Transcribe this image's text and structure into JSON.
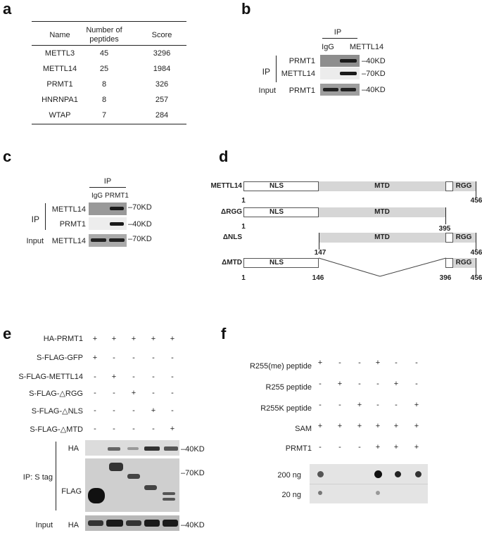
{
  "panels": {
    "a": "a",
    "b": "b",
    "c": "c",
    "d": "d",
    "e": "e",
    "f": "f"
  },
  "table": {
    "headers": [
      "Name",
      "Number of peptides",
      "Score"
    ],
    "header_lines": {
      "col2_l1": "Number of",
      "col2_l2": "peptides"
    },
    "rows": [
      {
        "name": "METTL3",
        "peptides": "45",
        "score": "3296"
      },
      {
        "name": "METTL14",
        "peptides": "25",
        "score": "1984"
      },
      {
        "name": "PRMT1",
        "peptides": "8",
        "score": "326"
      },
      {
        "name": "HNRNPA1",
        "peptides": "8",
        "score": "257"
      },
      {
        "name": "WTAP",
        "peptides": "7",
        "score": "284"
      }
    ]
  },
  "panel_b": {
    "ip_header": "IP",
    "lanes": [
      "IgG",
      "METTL14"
    ],
    "group_ip": "IP",
    "group_input": "Input",
    "rows": [
      {
        "label": "PRMT1",
        "marker": "40KD"
      },
      {
        "label": "METTL14",
        "marker": "70KD"
      },
      {
        "label": "PRMT1",
        "marker": "40KD"
      }
    ]
  },
  "panel_c": {
    "ip_header": "IP",
    "lanes": [
      "IgG",
      "PRMT1"
    ],
    "group_ip": "IP",
    "group_input": "Input",
    "rows": [
      {
        "label": "METTL14",
        "marker": "70KD"
      },
      {
        "label": "PRMT1",
        "marker": "40KD"
      },
      {
        "label": "METTL14",
        "marker": "70KD"
      }
    ]
  },
  "panel_d": {
    "constructs": [
      {
        "name": "METTL14",
        "segs": {
          "nls": "NLS",
          "mtd": "MTD",
          "rgg": "RGG"
        },
        "start": "1",
        "end": "456"
      },
      {
        "name": "ΔRGG",
        "segs": {
          "nls": "NLS",
          "mtd": "MTD"
        },
        "start": "1",
        "end": "395"
      },
      {
        "name": "ΔNLS",
        "segs": {
          "mtd": "MTD",
          "rgg": "RGG"
        },
        "start": "147",
        "end": "456"
      },
      {
        "name": "ΔMTD",
        "segs": {
          "nls": "NLS",
          "rgg": "RGG"
        },
        "start": "1",
        "mid1": "146",
        "mid2": "396",
        "end": "456"
      }
    ]
  },
  "panel_e": {
    "rows": [
      {
        "label": "HA-PRMT1",
        "signs": [
          "+",
          "+",
          "+",
          "+",
          "+"
        ]
      },
      {
        "label": "S-FLAG-GFP",
        "signs": [
          "+",
          "-",
          "-",
          "-",
          "-"
        ]
      },
      {
        "label": "S-FLAG-METTL14",
        "signs": [
          "-",
          "+",
          "-",
          "-",
          "-"
        ]
      },
      {
        "label": "S-FLAG-△RGG",
        "signs": [
          "-",
          "-",
          "+",
          "-",
          "-"
        ]
      },
      {
        "label": "S-FLAG-△NLS",
        "signs": [
          "-",
          "-",
          "-",
          "+",
          "-"
        ]
      },
      {
        "label": "S-FLAG-△MTD",
        "signs": [
          "-",
          "-",
          "-",
          "-",
          "+"
        ]
      }
    ],
    "ip_group": "IP: S tag",
    "input_group": "Input",
    "blots": [
      {
        "label": "HA",
        "marker": "40KD"
      },
      {
        "label": "FLAG",
        "marker": "70KD"
      },
      {
        "label": "HA",
        "marker": "40KD"
      }
    ]
  },
  "panel_f": {
    "rows": [
      {
        "label": "R255(me) peptide",
        "signs": [
          "+",
          "-",
          "-",
          "+",
          "-",
          "-"
        ]
      },
      {
        "label": "R255 peptide",
        "signs": [
          "-",
          "+",
          "-",
          "-",
          "+",
          "-"
        ]
      },
      {
        "label": "R255K peptide",
        "signs": [
          "-",
          "-",
          "+",
          "-",
          "-",
          "+"
        ]
      },
      {
        "label": "SAM",
        "signs": [
          "+",
          "+",
          "+",
          "+",
          "+",
          "+"
        ]
      },
      {
        "label": "PRMT1",
        "signs": [
          "-",
          "-",
          "-",
          "+",
          "+",
          "+"
        ]
      }
    ],
    "amounts": [
      "200 ng",
      "20 ng"
    ]
  }
}
